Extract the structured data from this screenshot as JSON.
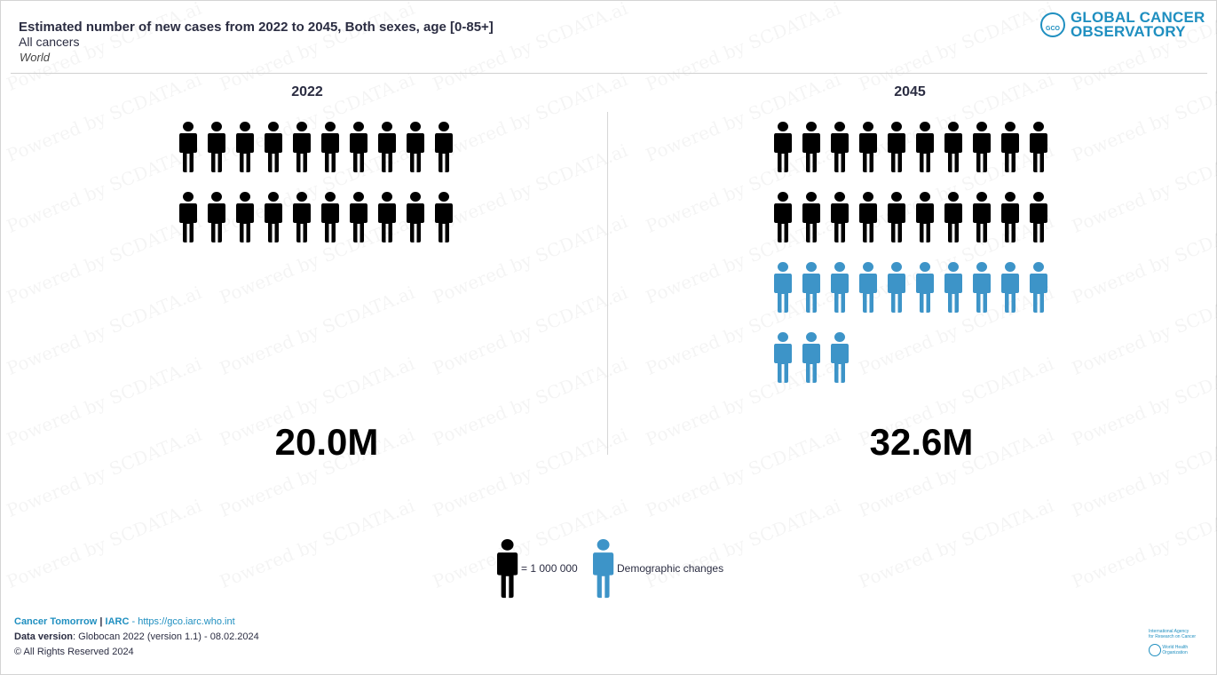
{
  "header": {
    "title": "Estimated number of new cases from 2022 to 2045, Both sexes, age [0-85+]",
    "subtitle": "All cancers",
    "region": "World"
  },
  "logo": {
    "line1": "GLOBAL CANCER",
    "line2": "OBSERVATORY",
    "mark_text": "GCO"
  },
  "chart_data": {
    "type": "pictogram",
    "unit_value": 1000000,
    "panels": [
      {
        "year": "2022",
        "total_label": "20.0M",
        "baseline_icons": 20,
        "demographic_icons": 0
      },
      {
        "year": "2045",
        "total_label": "32.6M",
        "baseline_icons": 20,
        "demographic_icons": 13
      }
    ],
    "icons_per_row": 10,
    "colors": {
      "baseline": "#000000",
      "demographic": "#3d94c8"
    }
  },
  "legend": {
    "unit_label": "= 1 000 000",
    "demographic_label": "Demographic changes"
  },
  "footer": {
    "brand": "Cancer Tomorrow",
    "sep": "|",
    "org": "IARC",
    "dash": "-",
    "url": "https://gco.iarc.who.int",
    "version_label": "Data version",
    "version_value": ": Globocan 2022 (version 1.1) - 08.02.2024",
    "rights": "© All Rights Reserved 2024"
  },
  "partner": {
    "line1": "International Agency",
    "line2": "for Research on Cancer",
    "line3": "World Health",
    "line4": "Organization"
  },
  "watermark": {
    "text": "Powered by SCDATA.ai"
  }
}
